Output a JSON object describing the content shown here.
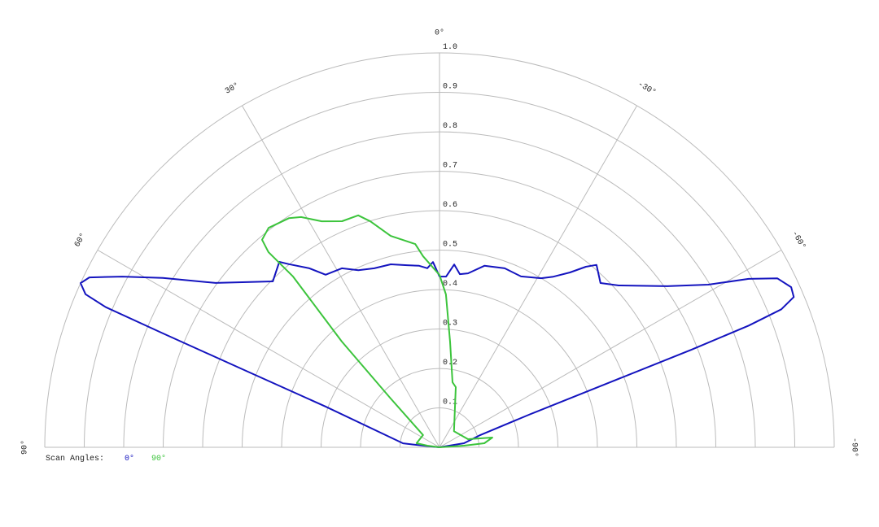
{
  "chart_data": {
    "type": "polar",
    "thetalim": [
      90,
      -90
    ],
    "thetaticks": [
      {
        "value": 90,
        "label": "90°"
      },
      {
        "value": 60,
        "label": "60°"
      },
      {
        "value": 30,
        "label": "30°"
      },
      {
        "value": 0,
        "label": "0°"
      },
      {
        "value": -30,
        "label": "-30°"
      },
      {
        "value": -60,
        "label": "-60°"
      },
      {
        "value": -90,
        "label": "-90°"
      }
    ],
    "rlim": [
      0,
      1
    ],
    "rticks": [
      0.1,
      0.2,
      0.3,
      0.4,
      0.5,
      0.6,
      0.7,
      0.8,
      0.9,
      {
        "value": 1,
        "label": "1.0"
      }
    ],
    "grid": true,
    "legend_title": "Scan Angles:",
    "series": [
      {
        "name": "0°",
        "color": "#1414bf",
        "theta": [
          90,
          84.3,
          83.7,
          70.3,
          68.4,
          67.6,
          67.2,
          66.6,
          65.4,
          64.1,
          61.7,
          58.5,
          53.7,
          45.1,
          40.8,
          39.4,
          36.0,
          33.4,
          28.6,
          24.6,
          20.0,
          14.9,
          10.1,
          6.4,
          3.9,
          2.0,
          0,
          -2.2,
          -4.6,
          -6.7,
          -9.3,
          -13.9,
          -20.0,
          -25.5,
          -31.0,
          -33.7,
          -36.7,
          -39.0,
          -40.7,
          -44.4,
          -47.9,
          -54.7,
          -58.8,
          -61.4,
          -63.4,
          -65.5,
          -67.0,
          -68.0,
          -68.5,
          -68.8,
          -69.1,
          -70.0,
          -73.3,
          -80.5,
          -90
        ],
        "r": [
          0,
          0.041,
          0.093,
          0.307,
          0.532,
          0.758,
          0.917,
          0.977,
          1.0,
          0.986,
          0.913,
          0.822,
          0.704,
          0.596,
          0.621,
          0.601,
          0.561,
          0.524,
          0.517,
          0.494,
          0.483,
          0.48,
          0.469,
          0.463,
          0.455,
          0.47,
          0.433,
          0.433,
          0.465,
          0.442,
          0.447,
          0.474,
          0.483,
          0.48,
          0.5,
          0.52,
          0.553,
          0.589,
          0.61,
          0.583,
          0.612,
          0.707,
          0.796,
          0.892,
          0.957,
          0.979,
          0.975,
          0.934,
          0.842,
          0.685,
          0.463,
          0.241,
          0.108,
          0.063,
          0
        ]
      },
      {
        "name": "90°",
        "color": "#3cc43c",
        "theta": [
          90,
          82.4,
          79.9,
          53.1,
          45.0,
          42.7,
          40.6,
          41.2,
          40.5,
          37.9,
          33.3,
          31.0,
          27.5,
          23.3,
          19.3,
          17.0,
          13.0,
          6.8,
          4.9,
          0,
          -2.4,
          -5.7,
          -11.3,
          -15.1,
          -42.0,
          -74.1,
          -79.5,
          -84.8,
          -86.2,
          -90
        ],
        "r": [
          0,
          0.031,
          0.059,
          0.052,
          0.175,
          0.365,
          0.57,
          0.658,
          0.692,
          0.705,
          0.695,
          0.681,
          0.646,
          0.624,
          0.623,
          0.599,
          0.55,
          0.519,
          0.486,
          0.437,
          0.388,
          0.269,
          0.168,
          0.158,
          0.055,
          0.075,
          0.136,
          0.114,
          0.062,
          0
        ]
      }
    ]
  }
}
